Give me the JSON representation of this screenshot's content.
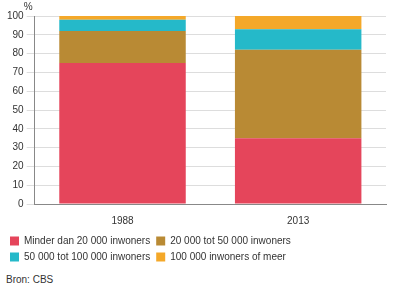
{
  "chart_data": {
    "type": "bar",
    "stacked": true,
    "ylabel": "%",
    "categories": [
      "1988",
      "2013"
    ],
    "series": [
      {
        "name": "Minder dan 20 000 inwoners",
        "color": "#e5455b",
        "values": [
          75,
          35
        ]
      },
      {
        "name": "20 000 tot 50 000 inwoners",
        "color": "#b98a34",
        "values": [
          17,
          47
        ]
      },
      {
        "name": "50 000 tot 100 000 inwoners",
        "color": "#25b9c9",
        "values": [
          6,
          11
        ]
      },
      {
        "name": "100 000 inwoners of meer",
        "color": "#f4a829",
        "values": [
          2,
          7
        ]
      }
    ],
    "ylim": [
      0,
      100
    ],
    "yticks": [
      0,
      10,
      20,
      30,
      40,
      50,
      60,
      70,
      80,
      90,
      100
    ],
    "grid": true,
    "legend": "bottom",
    "source": "Bron: CBS"
  }
}
